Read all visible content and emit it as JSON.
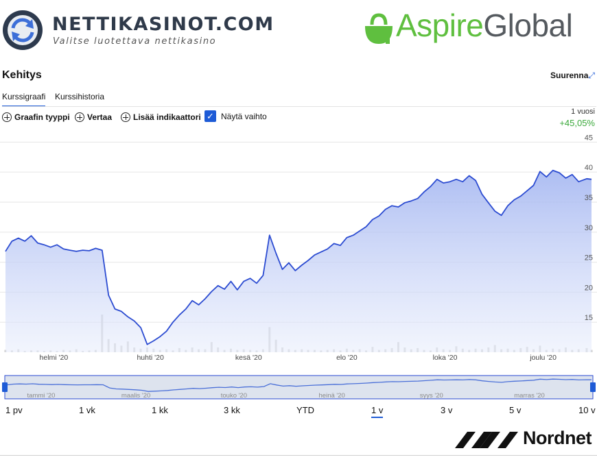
{
  "header": {
    "site_name": "NETTIKASINOT.COM",
    "site_tagline": "Valitse luotettava nettikasino",
    "brand_part1": "Aspire",
    "brand_part2": "Global"
  },
  "widget": {
    "title": "Kehitys",
    "expand_label": "Suurenna",
    "tabs": [
      {
        "label": "Kurssigraafi",
        "active": true
      },
      {
        "label": "Kurssihistoria",
        "active": false
      }
    ],
    "tools": {
      "chart_type": "Graafin tyyppi",
      "compare": "Vertaa",
      "add_indicator": "Lisää indikaattori",
      "show_volume": "Näytä vaihto"
    },
    "period_label": "1 vuosi",
    "period_change": "+45,05%",
    "ranges": [
      {
        "label": "1 pv",
        "active": false
      },
      {
        "label": "1 vk",
        "active": false
      },
      {
        "label": "1 kk",
        "active": false
      },
      {
        "label": "3 kk",
        "active": false
      },
      {
        "label": "YTD",
        "active": false
      },
      {
        "label": "1 v",
        "active": true
      },
      {
        "label": "3 v",
        "active": false
      },
      {
        "label": "5 v",
        "active": false
      },
      {
        "label": "10 v",
        "active": false
      }
    ],
    "footer_brand": "Nordnet"
  },
  "colors": {
    "accent": "#1e5bd6",
    "line": "#2b4bd1",
    "positive": "#3aa83a",
    "aspire_green": "#5fbf3f"
  },
  "chart_data": {
    "type": "area",
    "x": [
      "2020-01-02",
      "2020-01-06",
      "2020-01-10",
      "2020-01-14",
      "2020-01-18",
      "2020-01-22",
      "2020-01-26",
      "2020-01-30",
      "2020-02-03",
      "2020-02-07",
      "2020-02-11",
      "2020-02-15",
      "2020-02-19",
      "2020-02-23",
      "2020-02-27",
      "2020-03-02",
      "2020-03-06",
      "2020-03-10",
      "2020-03-14",
      "2020-03-18",
      "2020-03-22",
      "2020-03-26",
      "2020-03-30",
      "2020-04-03",
      "2020-04-07",
      "2020-04-11",
      "2020-04-15",
      "2020-04-19",
      "2020-04-23",
      "2020-04-27",
      "2020-05-01",
      "2020-05-05",
      "2020-05-09",
      "2020-05-13",
      "2020-05-17",
      "2020-05-21",
      "2020-05-25",
      "2020-05-29",
      "2020-06-02",
      "2020-06-06",
      "2020-06-10",
      "2020-06-14",
      "2020-06-18",
      "2020-06-22",
      "2020-06-26",
      "2020-06-30",
      "2020-07-04",
      "2020-07-08",
      "2020-07-12",
      "2020-07-16",
      "2020-07-20",
      "2020-07-24",
      "2020-07-28",
      "2020-08-01",
      "2020-08-05",
      "2020-08-09",
      "2020-08-13",
      "2020-08-17",
      "2020-08-21",
      "2020-08-25",
      "2020-08-29",
      "2020-09-02",
      "2020-09-06",
      "2020-09-10",
      "2020-09-14",
      "2020-09-18",
      "2020-09-22",
      "2020-09-26",
      "2020-09-30",
      "2020-10-04",
      "2020-10-08",
      "2020-10-12",
      "2020-10-16",
      "2020-10-20",
      "2020-10-24",
      "2020-10-28",
      "2020-11-01",
      "2020-11-05",
      "2020-11-09",
      "2020-11-13",
      "2020-11-17",
      "2020-11-21",
      "2020-11-25",
      "2020-11-29",
      "2020-12-03",
      "2020-12-07",
      "2020-12-11",
      "2020-12-15",
      "2020-12-19",
      "2020-12-23",
      "2020-12-28",
      "2020-12-31"
    ],
    "price": [
      26.8,
      28.5,
      29.0,
      28.5,
      29.4,
      28.2,
      27.9,
      27.5,
      27.9,
      27.2,
      27.0,
      26.8,
      27.0,
      26.9,
      27.3,
      27.0,
      19.5,
      17.2,
      16.8,
      15.9,
      15.2,
      14.1,
      11.3,
      11.9,
      12.6,
      13.5,
      15.0,
      16.2,
      17.2,
      18.6,
      17.9,
      18.9,
      20.1,
      21.1,
      20.5,
      21.8,
      20.4,
      21.8,
      22.3,
      21.5,
      22.8,
      29.5,
      26.5,
      23.8,
      24.9,
      23.6,
      24.5,
      25.3,
      26.2,
      26.7,
      27.2,
      28.1,
      27.8,
      29.1,
      29.5,
      30.2,
      30.9,
      32.1,
      32.7,
      33.8,
      34.4,
      34.2,
      34.9,
      35.2,
      35.6,
      36.7,
      37.6,
      38.8,
      38.2,
      38.4,
      38.8,
      38.4,
      39.4,
      38.6,
      36.3,
      34.9,
      33.5,
      32.8,
      34.4,
      35.4,
      36.0,
      36.9,
      37.8,
      40.1,
      39.2,
      40.3,
      39.9,
      39.0,
      39.6,
      38.4,
      38.9,
      38.8
    ],
    "volume": [
      0.4,
      0.3,
      0.5,
      0.2,
      0.3,
      0.3,
      0.2,
      0.3,
      0.2,
      0.4,
      0.3,
      0.5,
      0.2,
      0.3,
      0.4,
      6.3,
      2.2,
      1.5,
      1.1,
      1.8,
      0.8,
      0.6,
      0.8,
      0.6,
      0.4,
      0.5,
      0.3,
      0.7,
      0.4,
      0.8,
      0.5,
      0.5,
      1.7,
      0.8,
      0.4,
      0.6,
      0.4,
      0.5,
      0.4,
      0.3,
      0.5,
      4.2,
      2.1,
      0.8,
      0.5,
      0.4,
      0.5,
      0.4,
      0.4,
      0.3,
      0.4,
      0.5,
      0.3,
      0.6,
      0.4,
      0.5,
      0.3,
      0.9,
      0.4,
      0.5,
      0.7,
      1.7,
      0.8,
      0.5,
      0.7,
      0.4,
      0.3,
      0.8,
      0.5,
      0.4,
      1.0,
      0.6,
      0.4,
      0.6,
      0.5,
      0.8,
      1.2,
      0.5,
      0.6,
      0.4,
      0.7,
      0.9,
      0.5,
      1.1,
      0.4,
      0.6,
      0.5,
      0.8,
      0.4,
      0.5,
      0.7,
      0.4
    ],
    "y_ticks": [
      15,
      20,
      25,
      30,
      35,
      40,
      45
    ],
    "ylim": [
      10,
      45.5
    ],
    "x_ticks": [
      {
        "label": "helmi '20",
        "date": "2020-02-01"
      },
      {
        "label": "huhti '20",
        "date": "2020-04-01"
      },
      {
        "label": "kesä '20",
        "date": "2020-06-01"
      },
      {
        "label": "elo '20",
        "date": "2020-08-01"
      },
      {
        "label": "loka '20",
        "date": "2020-10-01"
      },
      {
        "label": "joulu '20",
        "date": "2020-12-01"
      }
    ],
    "navigator_ticks": [
      {
        "label": "tammi '20",
        "date": "2020-01-01"
      },
      {
        "label": "maalis '20",
        "date": "2020-03-01"
      },
      {
        "label": "touko '20",
        "date": "2020-05-01"
      },
      {
        "label": "heinä '20",
        "date": "2020-07-01"
      },
      {
        "label": "syys '20",
        "date": "2020-09-01"
      },
      {
        "label": "marras '20",
        "date": "2020-11-01"
      }
    ],
    "grid": true,
    "y_axis_side": "right"
  }
}
